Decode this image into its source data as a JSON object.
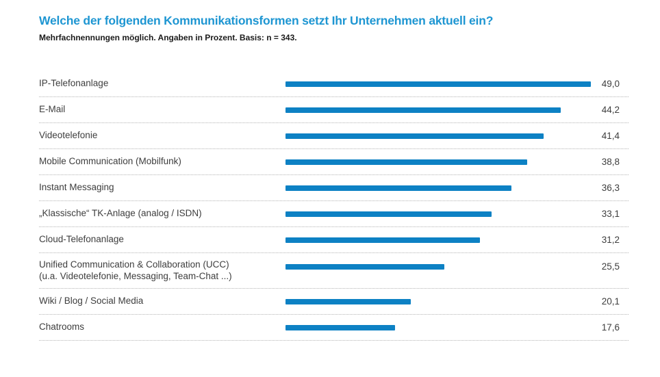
{
  "chart_data": {
    "type": "bar",
    "orientation": "horizontal",
    "title": "Welche der folgenden Kommunikationsformen setzt Ihr Unternehmen aktuell ein?",
    "subtitle": "Mehrfachnennungen möglich. Angaben in Prozent. Basis: n = 343.",
    "unit": "Prozent",
    "basis_n": 343,
    "xlim": [
      0,
      50
    ],
    "grid": "dotted-row-separators",
    "legend": "none",
    "bar_color": "#0d81c4",
    "title_color": "#1e96d2",
    "label_color": "#3d3d3d",
    "separator_color": "#b3b3b3",
    "categories": [
      "IP-Telefonanlage",
      "E-Mail",
      "Videotelefonie",
      "Mobile Communication (Mobilfunk)",
      "Instant Messaging",
      "„Klassische“ TK-Anlage (analog / ISDN)",
      "Cloud-Telefonanlage",
      "Unified Communication & Collaboration (UCC) (u.a. Videotelefonie, Messaging, Team-Chat ...)",
      "Wiki / Blog / Social Media",
      "Chatrooms"
    ],
    "values": [
      49.0,
      44.2,
      41.4,
      38.8,
      36.3,
      33.1,
      31.2,
      25.5,
      20.1,
      17.6
    ],
    "rows": [
      {
        "category": "IP-Telefonanlage",
        "category_line2": "",
        "value": 49.0,
        "display_value": "49,0"
      },
      {
        "category": "E-Mail",
        "category_line2": "",
        "value": 44.2,
        "display_value": "44,2"
      },
      {
        "category": "Videotelefonie",
        "category_line2": "",
        "value": 41.4,
        "display_value": "41,4"
      },
      {
        "category": "Mobile Communication (Mobilfunk)",
        "category_line2": "",
        "value": 38.8,
        "display_value": "38,8"
      },
      {
        "category": "Instant Messaging",
        "category_line2": "",
        "value": 36.3,
        "display_value": "36,3"
      },
      {
        "category": "„Klassische“ TK-Anlage (analog / ISDN)",
        "category_line2": "",
        "value": 33.1,
        "display_value": "33,1"
      },
      {
        "category": "Cloud-Telefonanlage",
        "category_line2": "",
        "value": 31.2,
        "display_value": "31,2"
      },
      {
        "category": "Unified Communication & Collaboration (UCC)",
        "category_line2": "(u.a. Videotelefonie, Messaging, Team-Chat ...)",
        "value": 25.5,
        "display_value": "25,5"
      },
      {
        "category": "Wiki / Blog / Social Media",
        "category_line2": "",
        "value": 20.1,
        "display_value": "20,1"
      },
      {
        "category": "Chatrooms",
        "category_line2": "",
        "value": 17.6,
        "display_value": "17,6"
      }
    ]
  }
}
